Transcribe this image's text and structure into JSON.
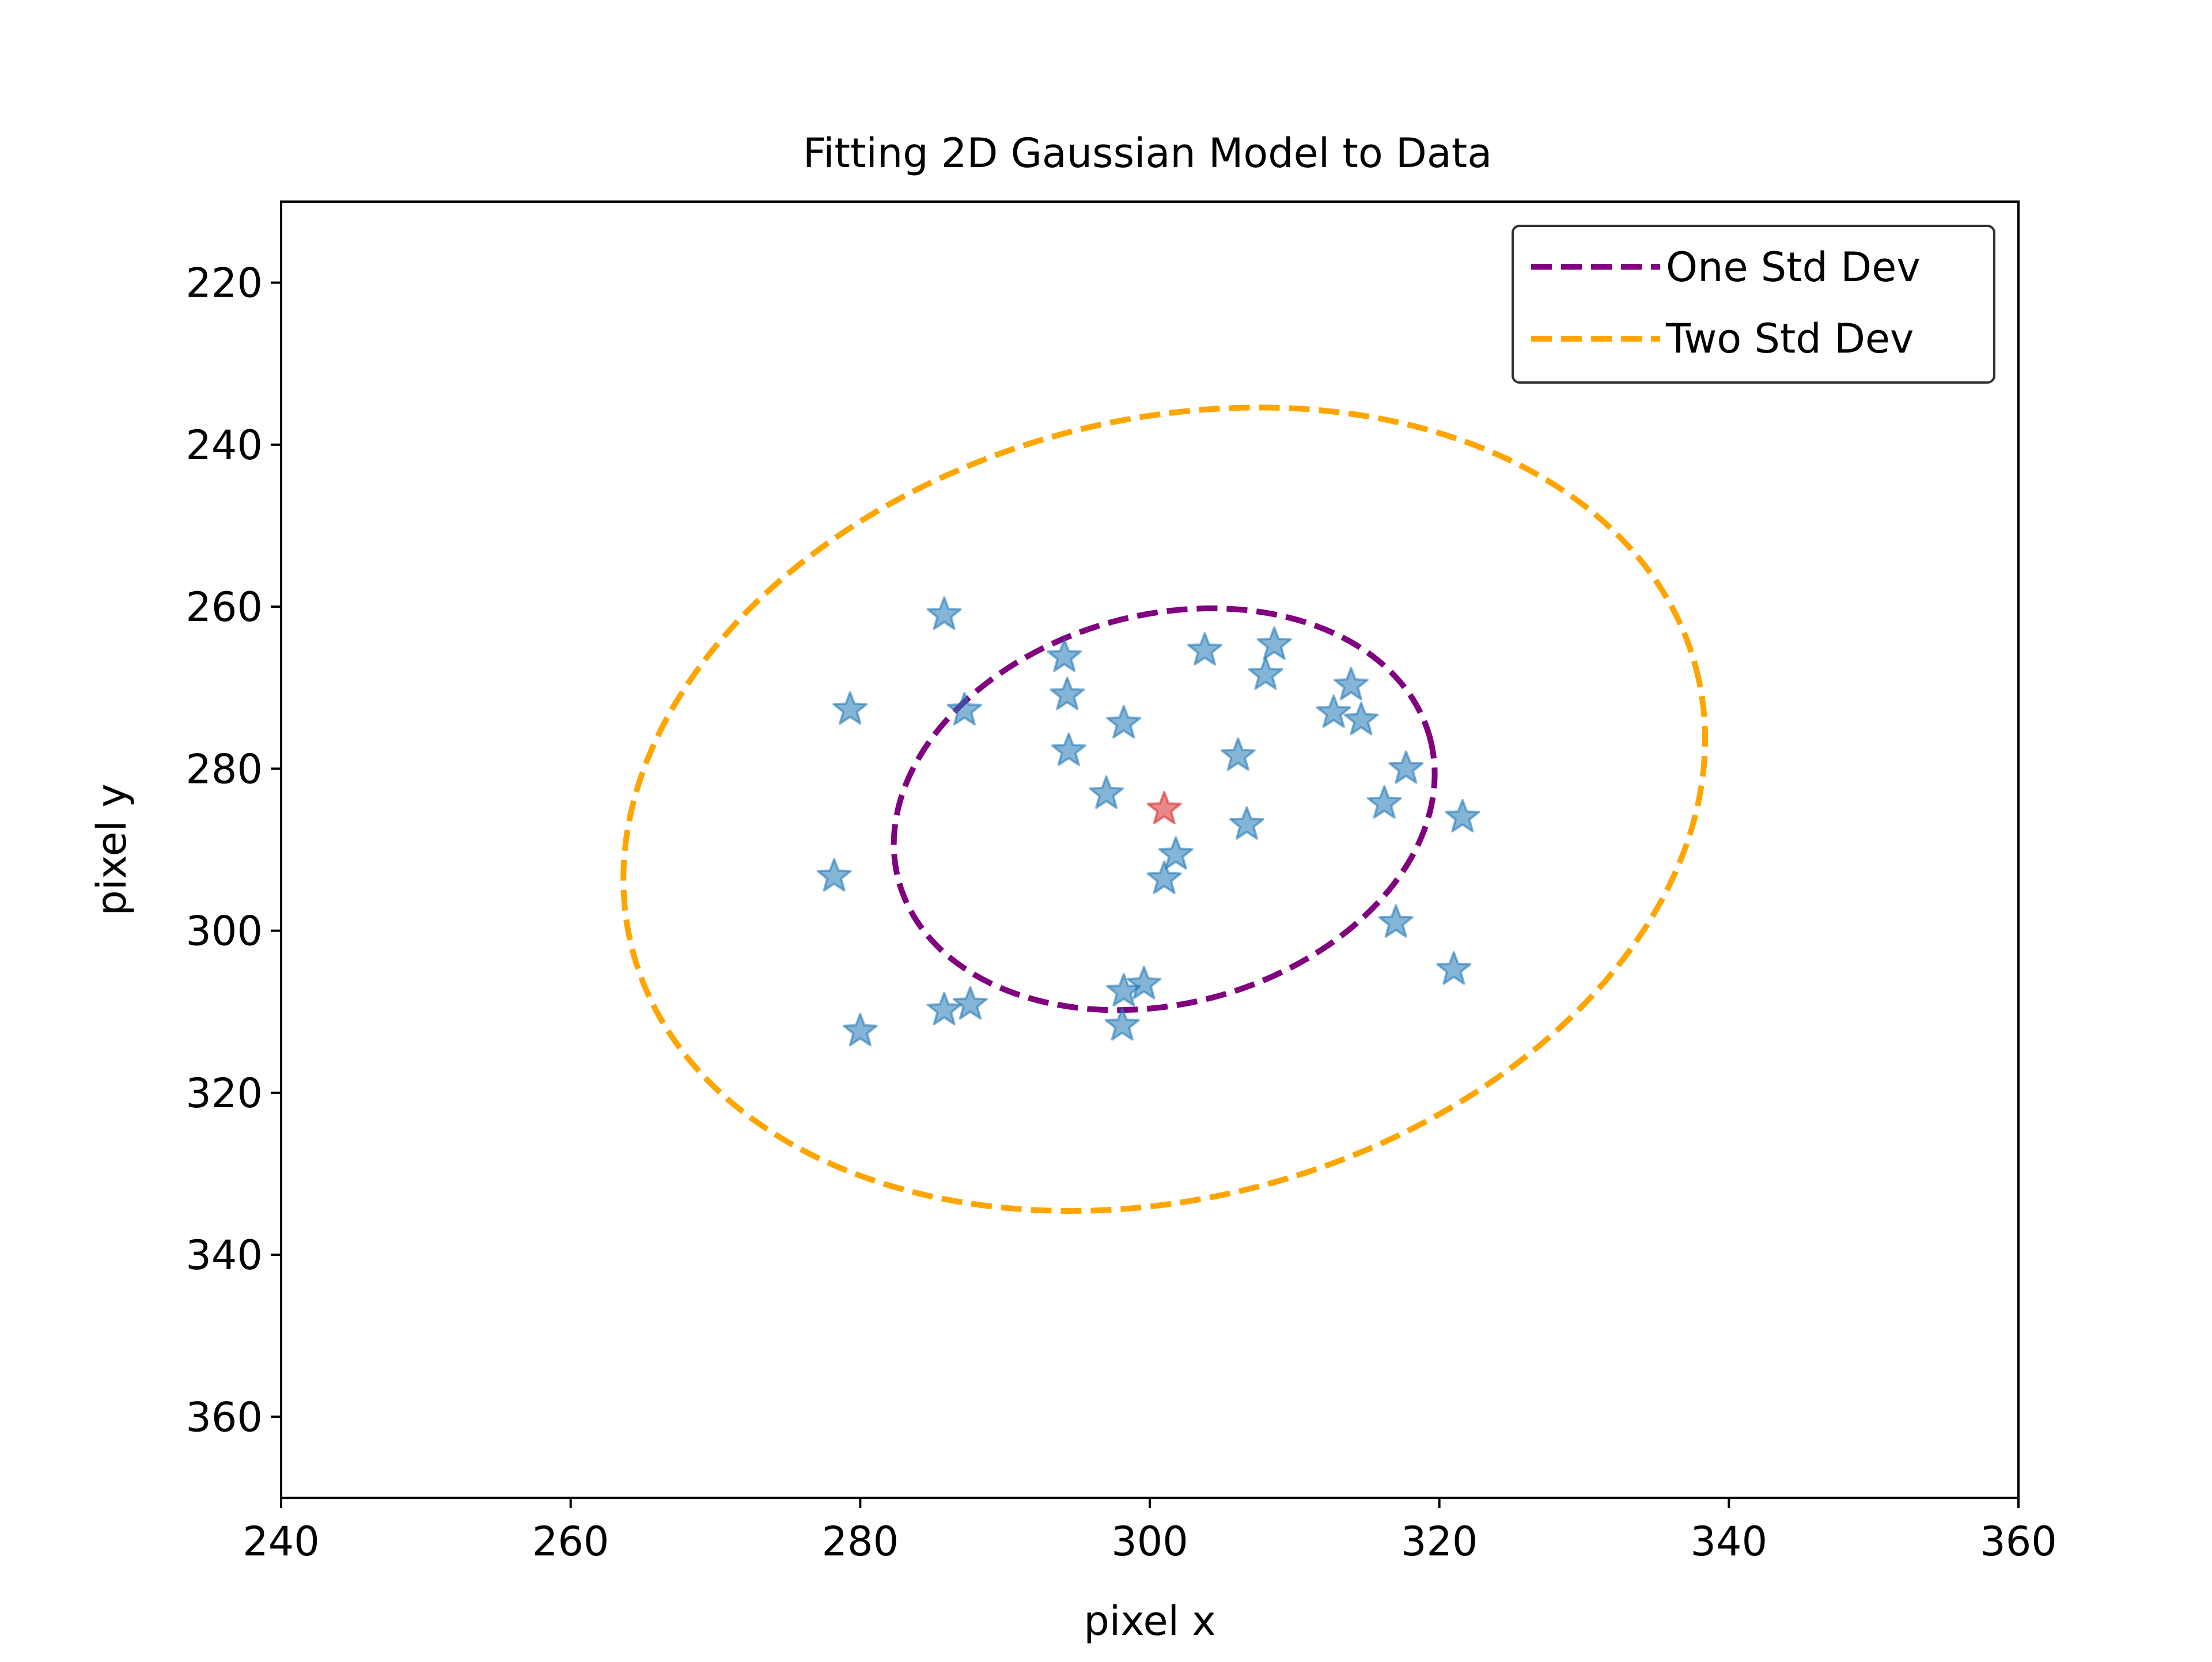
{
  "chart_data": {
    "type": "scatter",
    "title": "Fitting 2D Gaussian Model to Data",
    "xlabel": "pixel x",
    "ylabel": "pixel y",
    "xlim": [
      240,
      360
    ],
    "ylim": [
      370,
      210
    ],
    "y_inverted": true,
    "grid": false,
    "xticks": [
      240,
      260,
      280,
      300,
      320,
      340,
      360
    ],
    "yticks": [
      220,
      240,
      260,
      280,
      300,
      320,
      340,
      360
    ],
    "legend_position": "top-right",
    "points": [
      {
        "x": 285.8,
        "y": 261.0
      },
      {
        "x": 279.3,
        "y": 272.7
      },
      {
        "x": 287.2,
        "y": 272.8
      },
      {
        "x": 294.1,
        "y": 266.2
      },
      {
        "x": 294.3,
        "y": 270.9
      },
      {
        "x": 294.4,
        "y": 277.8
      },
      {
        "x": 298.2,
        "y": 274.4
      },
      {
        "x": 297.0,
        "y": 283.1
      },
      {
        "x": 303.8,
        "y": 265.4
      },
      {
        "x": 308.6,
        "y": 264.7
      },
      {
        "x": 308.0,
        "y": 268.4
      },
      {
        "x": 306.1,
        "y": 278.4
      },
      {
        "x": 306.7,
        "y": 286.9
      },
      {
        "x": 313.9,
        "y": 269.7
      },
      {
        "x": 312.7,
        "y": 273.1
      },
      {
        "x": 314.6,
        "y": 274.0
      },
      {
        "x": 317.7,
        "y": 280.0
      },
      {
        "x": 316.2,
        "y": 284.3
      },
      {
        "x": 321.6,
        "y": 286.0
      },
      {
        "x": 317.0,
        "y": 299.0
      },
      {
        "x": 321.0,
        "y": 304.8
      },
      {
        "x": 301.8,
        "y": 290.6
      },
      {
        "x": 301.0,
        "y": 293.6
      },
      {
        "x": 278.2,
        "y": 293.3
      },
      {
        "x": 285.8,
        "y": 309.8
      },
      {
        "x": 287.6,
        "y": 309.1
      },
      {
        "x": 280.0,
        "y": 312.4
      },
      {
        "x": 298.2,
        "y": 307.5
      },
      {
        "x": 299.6,
        "y": 306.6
      },
      {
        "x": 298.1,
        "y": 311.7
      }
    ],
    "center": {
      "x": 301.0,
      "y": 285.0
    },
    "series": [
      {
        "name": "One Std Dev",
        "color": "#800080",
        "cx": 301.0,
        "cy": 285.0,
        "rx": 19.0,
        "ry": 24.0,
        "angle_deg": -15
      },
      {
        "name": "Two Std Dev",
        "color": "#FFA500",
        "cx": 301.0,
        "cy": 285.0,
        "rx": 38.0,
        "ry": 48.0,
        "angle_deg": -15
      }
    ],
    "point_color": "#1f77b4",
    "center_color": "#d62728"
  }
}
